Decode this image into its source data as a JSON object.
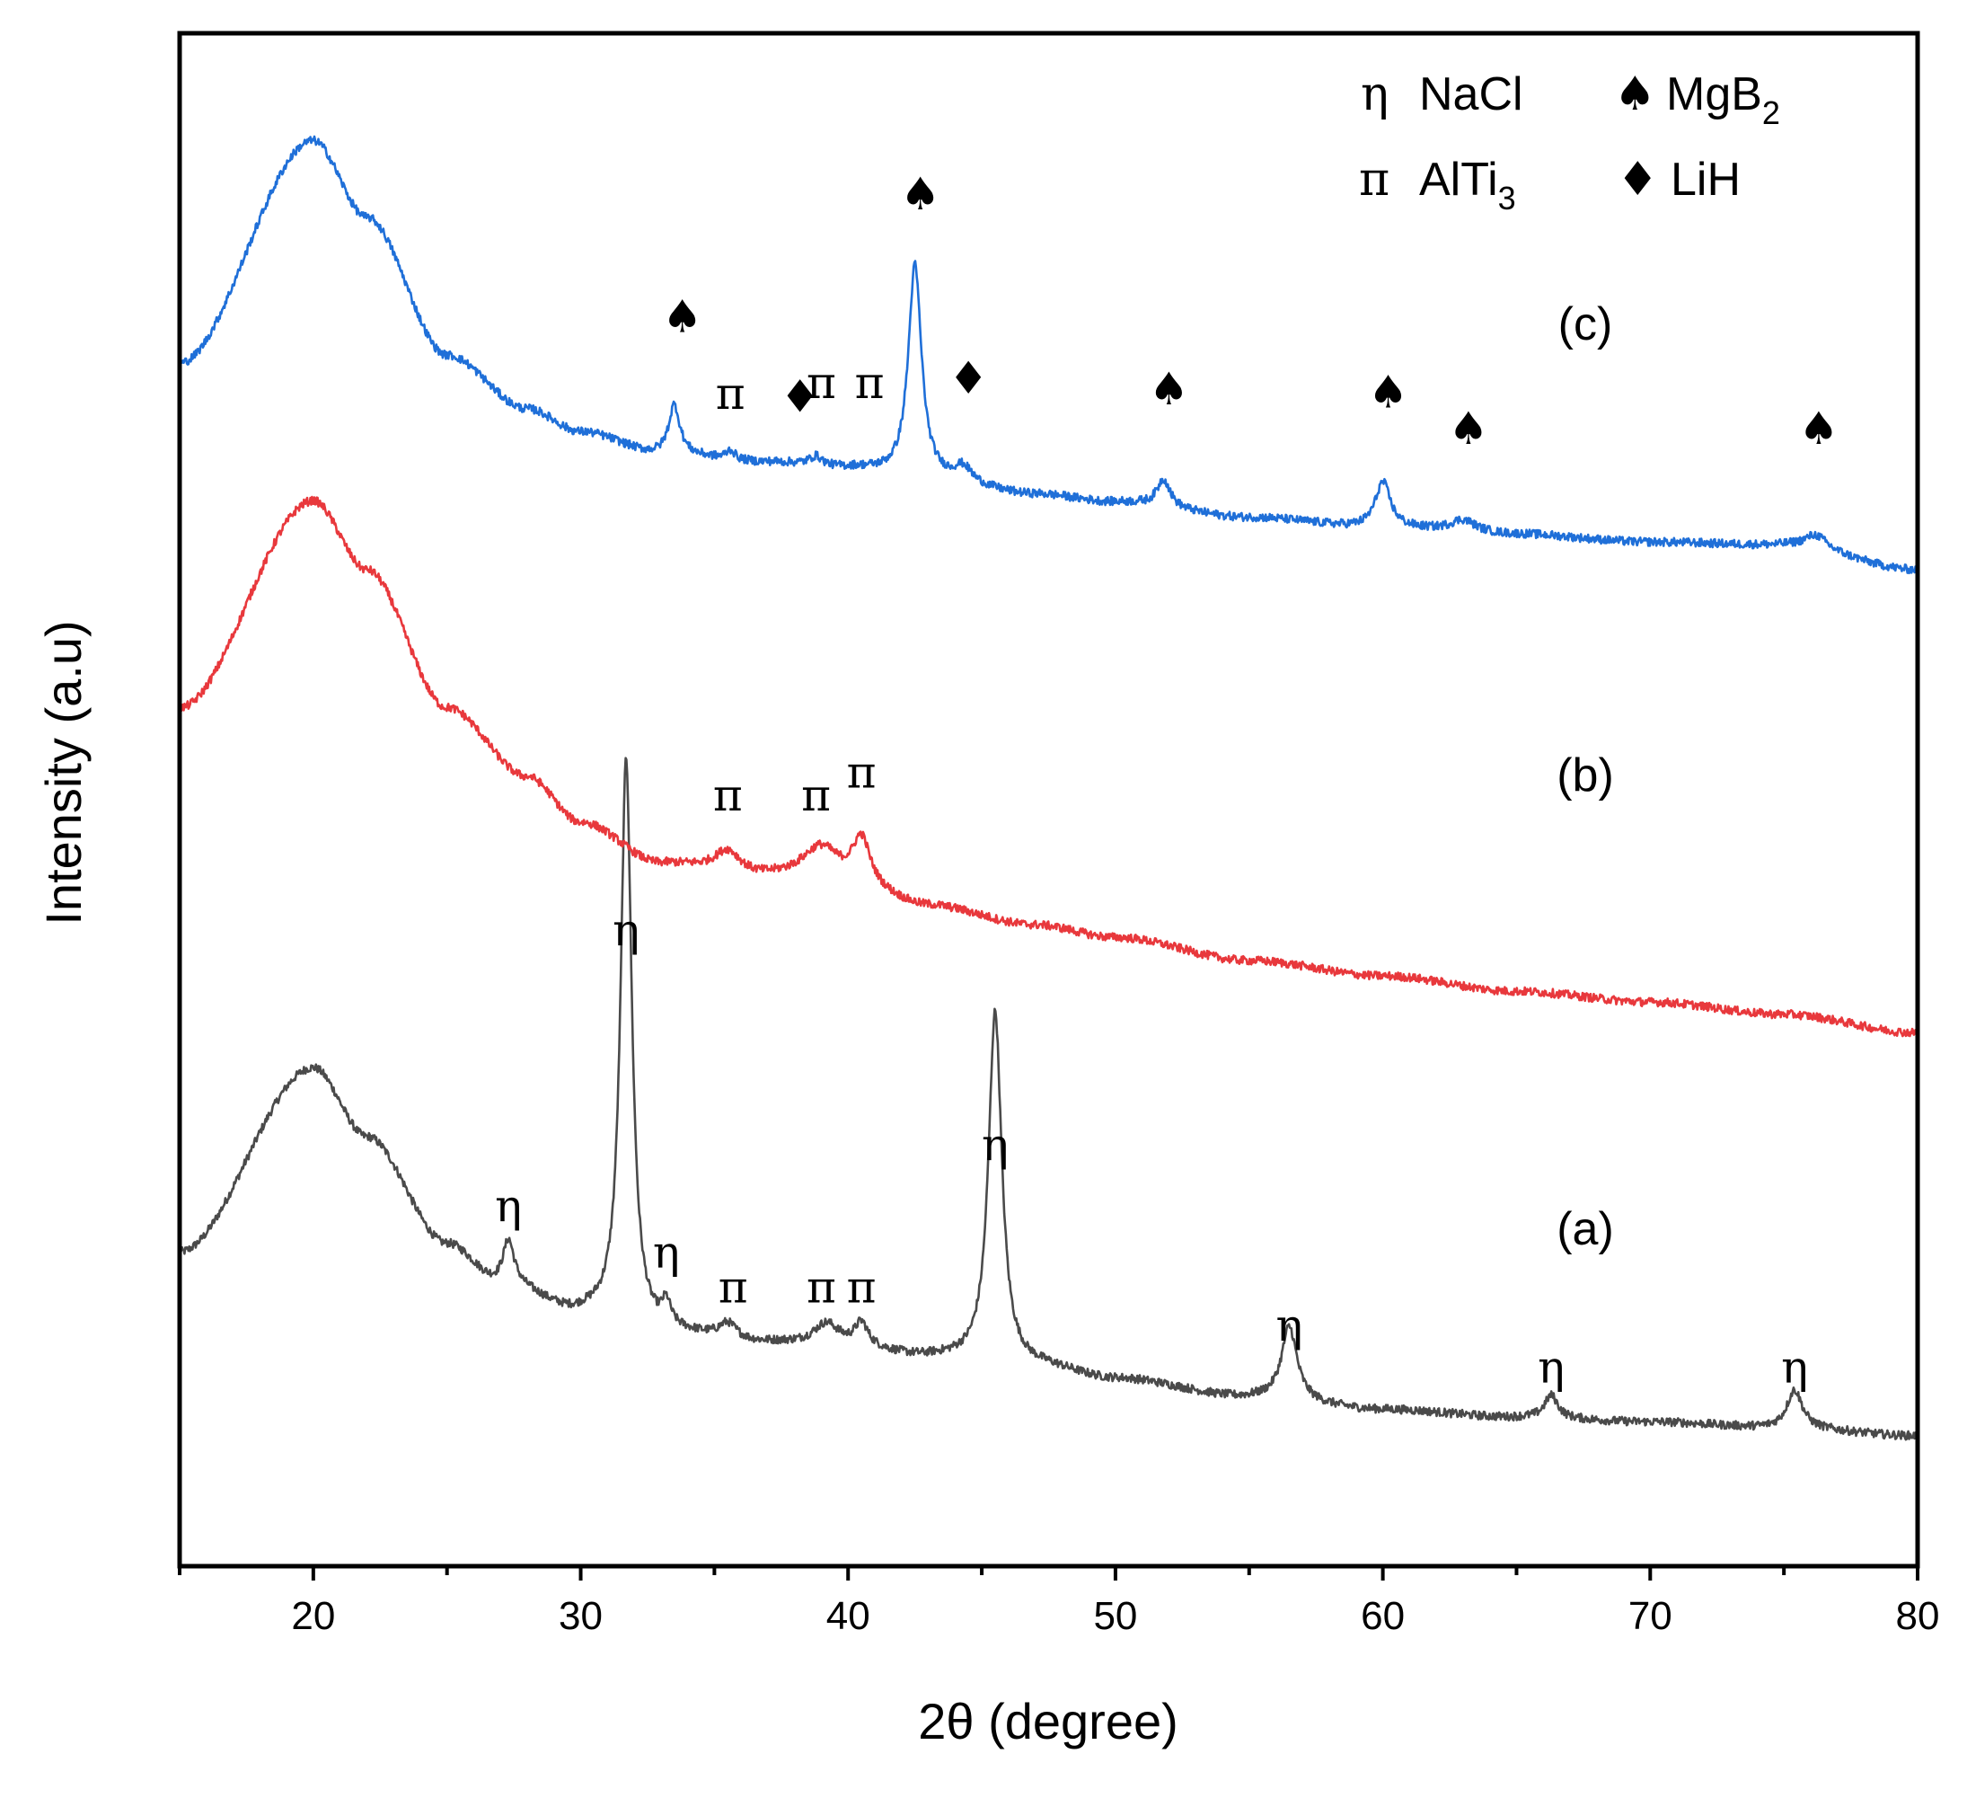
{
  "chart_data": {
    "type": "line",
    "title": "",
    "xlabel": "2θ (degree)",
    "ylabel": "Intensity (a.u)",
    "xlim": [
      15,
      80
    ],
    "ylim": [
      0,
      100
    ],
    "xticks": [
      20,
      30,
      40,
      50,
      60,
      70,
      80
    ],
    "grid": false,
    "colors": {
      "a": "#4a4a4a",
      "b": "#e8383c",
      "c": "#1f6fd8",
      "axis": "#000000"
    },
    "series": [
      {
        "name": "(a)",
        "key": "a",
        "baseline": [
          [
            15,
            20.5
          ],
          [
            20,
            32.5
          ],
          [
            22,
            28
          ],
          [
            25,
            21
          ],
          [
            27,
            18.5
          ],
          [
            30,
            16.5
          ],
          [
            33,
            15.2
          ],
          [
            37,
            14.5
          ],
          [
            40,
            14.2
          ],
          [
            43,
            13.6
          ],
          [
            47,
            13.0
          ],
          [
            50,
            12.2
          ],
          [
            55,
            11.0
          ],
          [
            60,
            10.2
          ],
          [
            65,
            9.7
          ],
          [
            70,
            9.4
          ],
          [
            75,
            9.0
          ],
          [
            80,
            8.5
          ]
        ],
        "peaks": [
          [
            27.3,
            2.8,
            0.25
          ],
          [
            31.7,
            37,
            0.25
          ],
          [
            33.2,
            1.5,
            0.2
          ],
          [
            35.5,
            1.0,
            0.4
          ],
          [
            39.2,
            1.5,
            0.6
          ],
          [
            40.5,
            1.5,
            0.3
          ],
          [
            45.5,
            23,
            0.3
          ],
          [
            56.5,
            4.8,
            0.35
          ],
          [
            66.3,
            1.5,
            0.3
          ],
          [
            75.4,
            2.5,
            0.35
          ]
        ]
      },
      {
        "name": "(b)",
        "key": "b",
        "baseline": [
          [
            15,
            56
          ],
          [
            20,
            69.5
          ],
          [
            22,
            65
          ],
          [
            25,
            56
          ],
          [
            28,
            51.5
          ],
          [
            30,
            48.5
          ],
          [
            33,
            45.8
          ],
          [
            37,
            44.8
          ],
          [
            40,
            44.2
          ],
          [
            43,
            43.0
          ],
          [
            47,
            41.8
          ],
          [
            50,
            41.0
          ],
          [
            55,
            39.5
          ],
          [
            60,
            38.5
          ],
          [
            65,
            37.5
          ],
          [
            70,
            36.8
          ],
          [
            75,
            36.0
          ],
          [
            80,
            34.8
          ]
        ],
        "peaks": [
          [
            35.5,
            1.5,
            0.6
          ],
          [
            39.0,
            2.5,
            0.9
          ],
          [
            40.5,
            3.0,
            0.4
          ]
        ]
      },
      {
        "name": "(c)",
        "key": "c",
        "baseline": [
          [
            15,
            78.5
          ],
          [
            20,
            93
          ],
          [
            22,
            88
          ],
          [
            25,
            79
          ],
          [
            28,
            75.5
          ],
          [
            30,
            74
          ],
          [
            33,
            72.6
          ],
          [
            37,
            72
          ],
          [
            40,
            71.6
          ],
          [
            43,
            70.8
          ],
          [
            47,
            69.9
          ],
          [
            50,
            69.4
          ],
          [
            55,
            68.4
          ],
          [
            60,
            67.7
          ],
          [
            65,
            67.3
          ],
          [
            70,
            66.8
          ],
          [
            75,
            66.6
          ],
          [
            80,
            65.0
          ]
        ],
        "peaks": [
          [
            33.5,
            3.2,
            0.25
          ],
          [
            35.6,
            0.6,
            0.2
          ],
          [
            38.8,
            0.6,
            0.3
          ],
          [
            42.5,
            14,
            0.3
          ],
          [
            44.3,
            1.0,
            0.4
          ],
          [
            51.8,
            1.8,
            0.3
          ],
          [
            60.0,
            3.0,
            0.35
          ],
          [
            63.0,
            0.8,
            0.6
          ],
          [
            76.2,
            0.9,
            0.5
          ]
        ]
      }
    ],
    "peak_labels": [
      {
        "symbol": "η",
        "x": 27.3,
        "y": 22.5,
        "series": "a"
      },
      {
        "symbol": "η",
        "x": 31.7,
        "y": 40.5,
        "series": "a"
      },
      {
        "symbol": "η",
        "x": 33.2,
        "y": 19.5,
        "series": "a"
      },
      {
        "symbol": "π",
        "x": 35.7,
        "y": 17.2,
        "series": "a"
      },
      {
        "symbol": "π",
        "x": 39.0,
        "y": 17.2,
        "series": "a"
      },
      {
        "symbol": "π",
        "x": 40.5,
        "y": 17.2,
        "series": "a"
      },
      {
        "symbol": "η",
        "x": 45.5,
        "y": 26.5,
        "series": "a"
      },
      {
        "symbol": "η",
        "x": 56.5,
        "y": 14.7,
        "series": "a"
      },
      {
        "symbol": "η",
        "x": 66.3,
        "y": 12.0,
        "series": "a"
      },
      {
        "symbol": "η",
        "x": 75.4,
        "y": 12.0,
        "series": "a"
      },
      {
        "symbol": "π",
        "x": 35.5,
        "y": 49.3,
        "series": "b"
      },
      {
        "symbol": "π",
        "x": 38.8,
        "y": 49.3,
        "series": "b"
      },
      {
        "symbol": "π",
        "x": 40.5,
        "y": 50.8,
        "series": "b"
      },
      {
        "symbol": "♠",
        "x": 33.8,
        "y": 80.5,
        "series": "c"
      },
      {
        "symbol": "π",
        "x": 35.6,
        "y": 75.5,
        "series": "c"
      },
      {
        "symbol": "♦",
        "x": 38.2,
        "y": 75.3,
        "series": "c"
      },
      {
        "symbol": "π",
        "x": 39.0,
        "y": 76.2,
        "series": "c"
      },
      {
        "symbol": "π",
        "x": 40.8,
        "y": 76.2,
        "series": "c"
      },
      {
        "symbol": "♠",
        "x": 42.7,
        "y": 88.5,
        "series": "c"
      },
      {
        "symbol": "♦",
        "x": 44.5,
        "y": 76.5,
        "series": "c"
      },
      {
        "symbol": "♠",
        "x": 52.0,
        "y": 75.8,
        "series": "c"
      },
      {
        "symbol": "♠",
        "x": 60.2,
        "y": 75.6,
        "series": "c"
      },
      {
        "symbol": "♠",
        "x": 63.2,
        "y": 73.2,
        "series": "c"
      },
      {
        "symbol": "♠",
        "x": 76.3,
        "y": 73.2,
        "series": "c"
      }
    ]
  },
  "curve_labels": {
    "a": "(a)",
    "b": "(b)",
    "c": "(c)"
  },
  "legend": {
    "items": [
      {
        "symbol": "η",
        "name": "NaCl",
        "sub": ""
      },
      {
        "symbol": "π",
        "name": "AlTi",
        "sub": "3"
      },
      {
        "symbol": "♠",
        "name": "MgB",
        "sub": "2"
      },
      {
        "symbol": "♦",
        "name": "LiH",
        "sub": ""
      }
    ]
  }
}
